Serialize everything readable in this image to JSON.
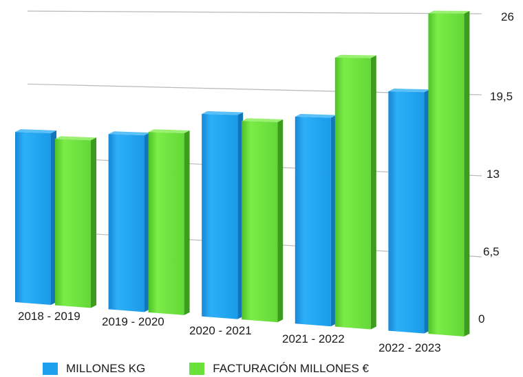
{
  "chart_data": {
    "type": "bar",
    "categories": [
      "2018 - 2019",
      "2019 - 2020",
      "2020 - 2021",
      "2021 - 2022",
      "2022 - 2023"
    ],
    "series": [
      {
        "name": "MILLONES KG",
        "values": [
          15.2,
          15.3,
          17.3,
          17.3,
          19.6
        ],
        "color": "#1ea0f0"
      },
      {
        "name": "FACTURACIÓN MILLONES €",
        "values": [
          14.7,
          15.6,
          16.8,
          22.3,
          26.0
        ],
        "color": "#6be13c"
      }
    ],
    "yticks": [
      "0",
      "6,5",
      "13",
      "19,5",
      "26"
    ],
    "ylim": [
      0,
      26
    ],
    "y_axis_position": "right",
    "grid": true,
    "legend_position": "bottom",
    "style": "3d-perspective"
  }
}
